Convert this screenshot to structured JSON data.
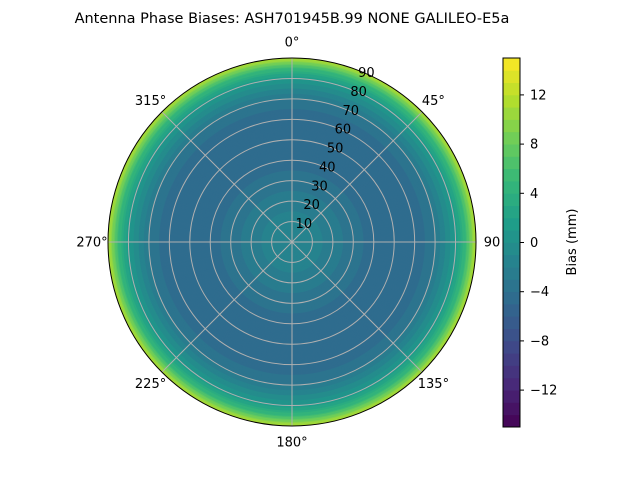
{
  "chart_data": {
    "type": "heatmap",
    "subtype": "polar-filled-contour",
    "title": "Antenna Phase Biases: ASH701945B.99   NONE GALILEO-E5a",
    "angular_ticks": [
      "0°",
      "45°",
      "90",
      "135°",
      "180°",
      "225°",
      "270°",
      "315°"
    ],
    "angular_direction": "clockwise",
    "angular_zero": "top",
    "radial_ticks": [
      "10",
      "20",
      "30",
      "40",
      "50",
      "60",
      "70",
      "80",
      "90"
    ],
    "radial_range": [
      0,
      90
    ],
    "radial_profile": {
      "zenith_deg": [
        0,
        10,
        20,
        30,
        40,
        50,
        60,
        70,
        80,
        85,
        90
      ],
      "bias_mm": [
        -1,
        -1.5,
        -2.5,
        -3.5,
        -4.5,
        -5,
        -5,
        -3,
        1,
        5,
        12
      ]
    },
    "grid": true,
    "colormap": "viridis",
    "colorbar": {
      "label": "Bias (mm)",
      "range": [
        -15,
        15
      ],
      "level_step": 1,
      "ticks": [
        "−12",
        "−8",
        "−4",
        "0",
        "4",
        "8",
        "12"
      ],
      "tick_values": [
        -12,
        -8,
        -4,
        0,
        4,
        8,
        12
      ],
      "placement": "right"
    }
  }
}
